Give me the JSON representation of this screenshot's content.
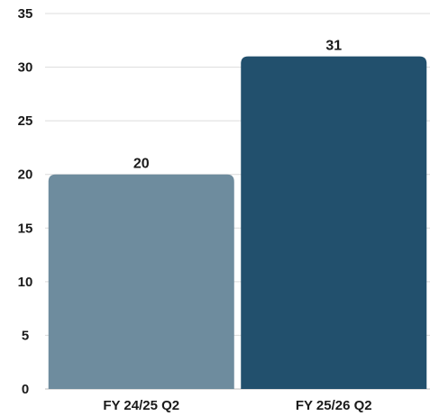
{
  "chart_data": {
    "type": "bar",
    "categories": [
      "FY 24/25 Q2",
      "FY 25/26 Q2"
    ],
    "values": [
      20,
      31
    ],
    "value_labels": [
      "20",
      "31"
    ],
    "bar_colors": [
      "#6e8c9e",
      "#22506d"
    ],
    "ylim": [
      0,
      35
    ],
    "yticks": [
      0,
      5,
      10,
      15,
      20,
      25,
      30,
      35
    ],
    "ytick_labels": [
      "0",
      "5",
      "10",
      "15",
      "20",
      "25",
      "30",
      "35"
    ],
    "grid": true,
    "title": "",
    "xlabel": "",
    "ylabel": ""
  }
}
